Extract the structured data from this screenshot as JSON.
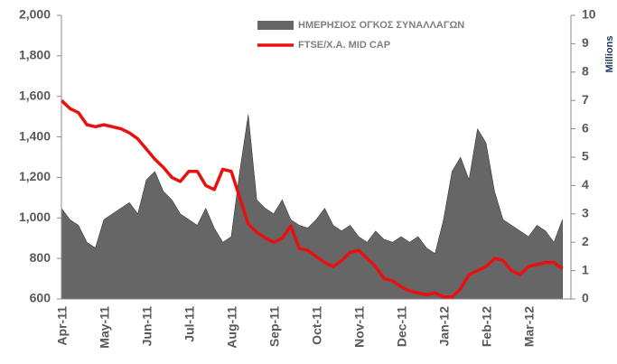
{
  "chart_data": {
    "type": "line",
    "categories": [
      "Apr-11",
      null,
      null,
      null,
      null,
      "May-11",
      null,
      null,
      null,
      null,
      "Jun-11",
      null,
      null,
      null,
      null,
      "Jul-11",
      null,
      null,
      null,
      null,
      "Aug-11",
      null,
      null,
      null,
      null,
      "Sep-11",
      null,
      null,
      null,
      null,
      "Oct-11",
      null,
      null,
      null,
      null,
      "Nov-11",
      null,
      null,
      null,
      null,
      "Dec-11",
      null,
      null,
      null,
      null,
      "Jan-12",
      null,
      null,
      null,
      null,
      "Feb-12",
      null,
      null,
      null,
      null,
      "Mar-12",
      null,
      null,
      null,
      null
    ],
    "series": [
      {
        "name": "ΗΜΕΡΗΣΙΟΣ ΟΓΚΟΣ ΣΥΝΑΛΛΑΓΩΝ",
        "color": "#666666",
        "axis": "y2",
        "style": "area",
        "values": [
          3.2,
          2.8,
          2.6,
          2.0,
          1.8,
          2.8,
          3.0,
          3.2,
          3.4,
          3.0,
          4.2,
          4.5,
          3.8,
          3.5,
          3.0,
          2.8,
          2.6,
          3.2,
          2.5,
          2.0,
          2.2,
          4.5,
          6.5,
          3.5,
          3.2,
          3.0,
          3.5,
          2.8,
          2.6,
          2.5,
          2.8,
          3.2,
          2.6,
          2.4,
          2.6,
          2.2,
          2.0,
          2.4,
          2.1,
          2.0,
          2.2,
          2.0,
          2.2,
          1.8,
          1.6,
          2.8,
          4.5,
          5.0,
          4.2,
          6.0,
          5.5,
          3.8,
          2.8,
          2.6,
          2.4,
          2.2,
          2.6,
          2.4,
          2.0,
          2.8
        ]
      },
      {
        "name": "FTSE/Χ.Α. MID CAP",
        "color": "#e81010",
        "style": "line",
        "values": [
          1580,
          1540,
          1520,
          1460,
          1450,
          1460,
          1450,
          1440,
          1420,
          1390,
          1340,
          1290,
          1250,
          1200,
          1180,
          1230,
          1230,
          1160,
          1140,
          1240,
          1230,
          1100,
          970,
          930,
          900,
          880,
          900,
          960,
          850,
          840,
          810,
          780,
          760,
          790,
          830,
          840,
          800,
          760,
          700,
          690,
          660,
          640,
          630,
          620,
          630,
          610,
          610,
          650,
          720,
          740,
          760,
          800,
          790,
          740,
          720,
          760,
          770,
          780,
          780,
          750
        ]
      }
    ],
    "ylim": [
      600,
      2000
    ],
    "yticks": [
      600,
      800,
      {
        "value": 1000,
        "label": "1,000"
      },
      {
        "value": 1200,
        "label": "1,200"
      },
      {
        "value": 1400,
        "label": "1,400"
      },
      {
        "value": 1600,
        "label": "1,600"
      },
      {
        "value": 1800,
        "label": "1,800"
      },
      {
        "value": 2000,
        "label": "2,000"
      }
    ],
    "y2lim": [
      0,
      10
    ],
    "y2ticks": [
      0,
      1,
      2,
      3,
      4,
      5,
      6,
      7,
      8,
      9,
      10
    ],
    "y2label": "Millions"
  }
}
